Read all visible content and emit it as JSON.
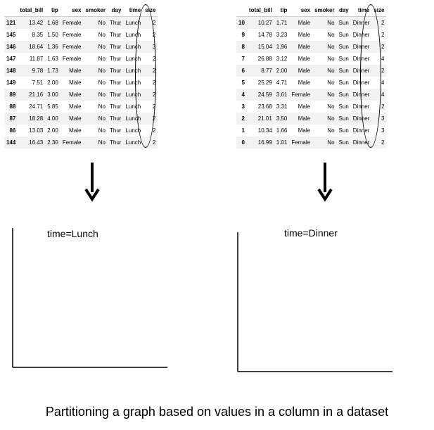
{
  "columns": [
    "",
    "total_bill",
    "tip",
    "sex",
    "smoker",
    "day",
    "time",
    "size"
  ],
  "lunch_table": [
    [
      "121",
      "13.42",
      "1.68",
      "Female",
      "No",
      "Thur",
      "Lunch",
      "2"
    ],
    [
      "145",
      "8.35",
      "1.50",
      "Female",
      "No",
      "Thur",
      "Lunch",
      "2"
    ],
    [
      "146",
      "18.64",
      "1.36",
      "Female",
      "No",
      "Thur",
      "Lunch",
      "3"
    ],
    [
      "147",
      "11.87",
      "1.63",
      "Female",
      "No",
      "Thur",
      "Lunch",
      "2"
    ],
    [
      "148",
      "9.78",
      "1.73",
      "Male",
      "No",
      "Thur",
      "Lunch",
      "2"
    ],
    [
      "149",
      "7.51",
      "2.00",
      "Male",
      "No",
      "Thur",
      "Lunch",
      "2"
    ],
    [
      "89",
      "21.16",
      "3.00",
      "Male",
      "No",
      "Thur",
      "Lunch",
      "2"
    ],
    [
      "88",
      "24.71",
      "5.85",
      "Male",
      "No",
      "Thur",
      "Lunch",
      "2"
    ],
    [
      "87",
      "18.28",
      "4.00",
      "Male",
      "No",
      "Thur",
      "Lunch",
      "2"
    ],
    [
      "86",
      "13.03",
      "2.00",
      "Male",
      "No",
      "Thur",
      "Lunch",
      "2"
    ],
    [
      "144",
      "16.43",
      "2.30",
      "Female",
      "No",
      "Thur",
      "Lunch",
      "2"
    ]
  ],
  "dinner_table": [
    [
      "10",
      "10.27",
      "1.71",
      "Male",
      "No",
      "Sun",
      "Dinner",
      "2"
    ],
    [
      "9",
      "14.78",
      "3.23",
      "Male",
      "No",
      "Sun",
      "Dinner",
      "2"
    ],
    [
      "8",
      "15.04",
      "1.96",
      "Male",
      "No",
      "Sun",
      "Dinner",
      "2"
    ],
    [
      "7",
      "26.88",
      "3.12",
      "Male",
      "No",
      "Sun",
      "Dinner",
      "4"
    ],
    [
      "6",
      "8.77",
      "2.00",
      "Male",
      "No",
      "Sun",
      "Dinner",
      "2"
    ],
    [
      "5",
      "25.29",
      "4.71",
      "Male",
      "No",
      "Sun",
      "Dinner",
      "4"
    ],
    [
      "4",
      "24.59",
      "3.61",
      "Female",
      "No",
      "Sun",
      "Dinner",
      "4"
    ],
    [
      "3",
      "23.68",
      "3.31",
      "Male",
      "No",
      "Sun",
      "Dinner",
      "2"
    ],
    [
      "2",
      "21.01",
      "3.50",
      "Male",
      "No",
      "Sun",
      "Dinner",
      "3"
    ],
    [
      "1",
      "10.34",
      "1.66",
      "Male",
      "No",
      "Sun",
      "Dinner",
      "3"
    ],
    [
      "0",
      "16.99",
      "1.01",
      "Female",
      "No",
      "Sun",
      "Dinner",
      "2"
    ]
  ],
  "facets": {
    "lunch_label": "time=Lunch",
    "dinner_label": "time=Dinner"
  },
  "caption": "Partitioning a graph based on values in a column in a dataset"
}
